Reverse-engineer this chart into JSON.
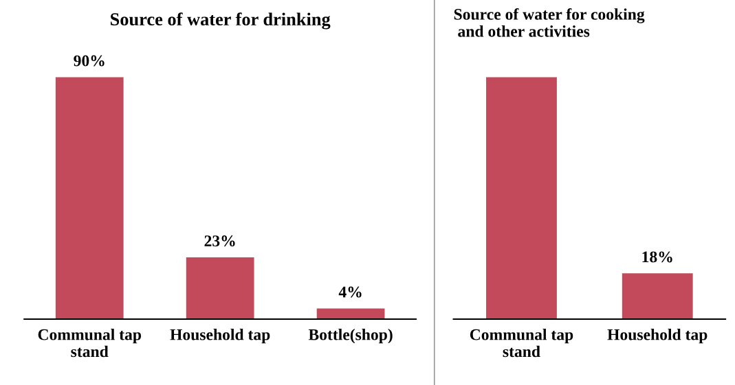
{
  "chart_data": [
    {
      "type": "bar",
      "title": "Source of water for drinking",
      "categories": [
        "Communal tap\nstand",
        "Household tap",
        "Bottle(shop)"
      ],
      "values": [
        90,
        23,
        4
      ],
      "value_labels": [
        "90%",
        "23%",
        "4%"
      ],
      "color": "#c24a5a"
    },
    {
      "type": "bar",
      "title": "Source of water for cooking\n and other activities",
      "categories": [
        "Communal tap\nstand",
        "Household tap"
      ],
      "values": [
        95,
        18
      ],
      "value_labels": [
        null,
        "18%"
      ],
      "color": "#c24a5a"
    }
  ]
}
